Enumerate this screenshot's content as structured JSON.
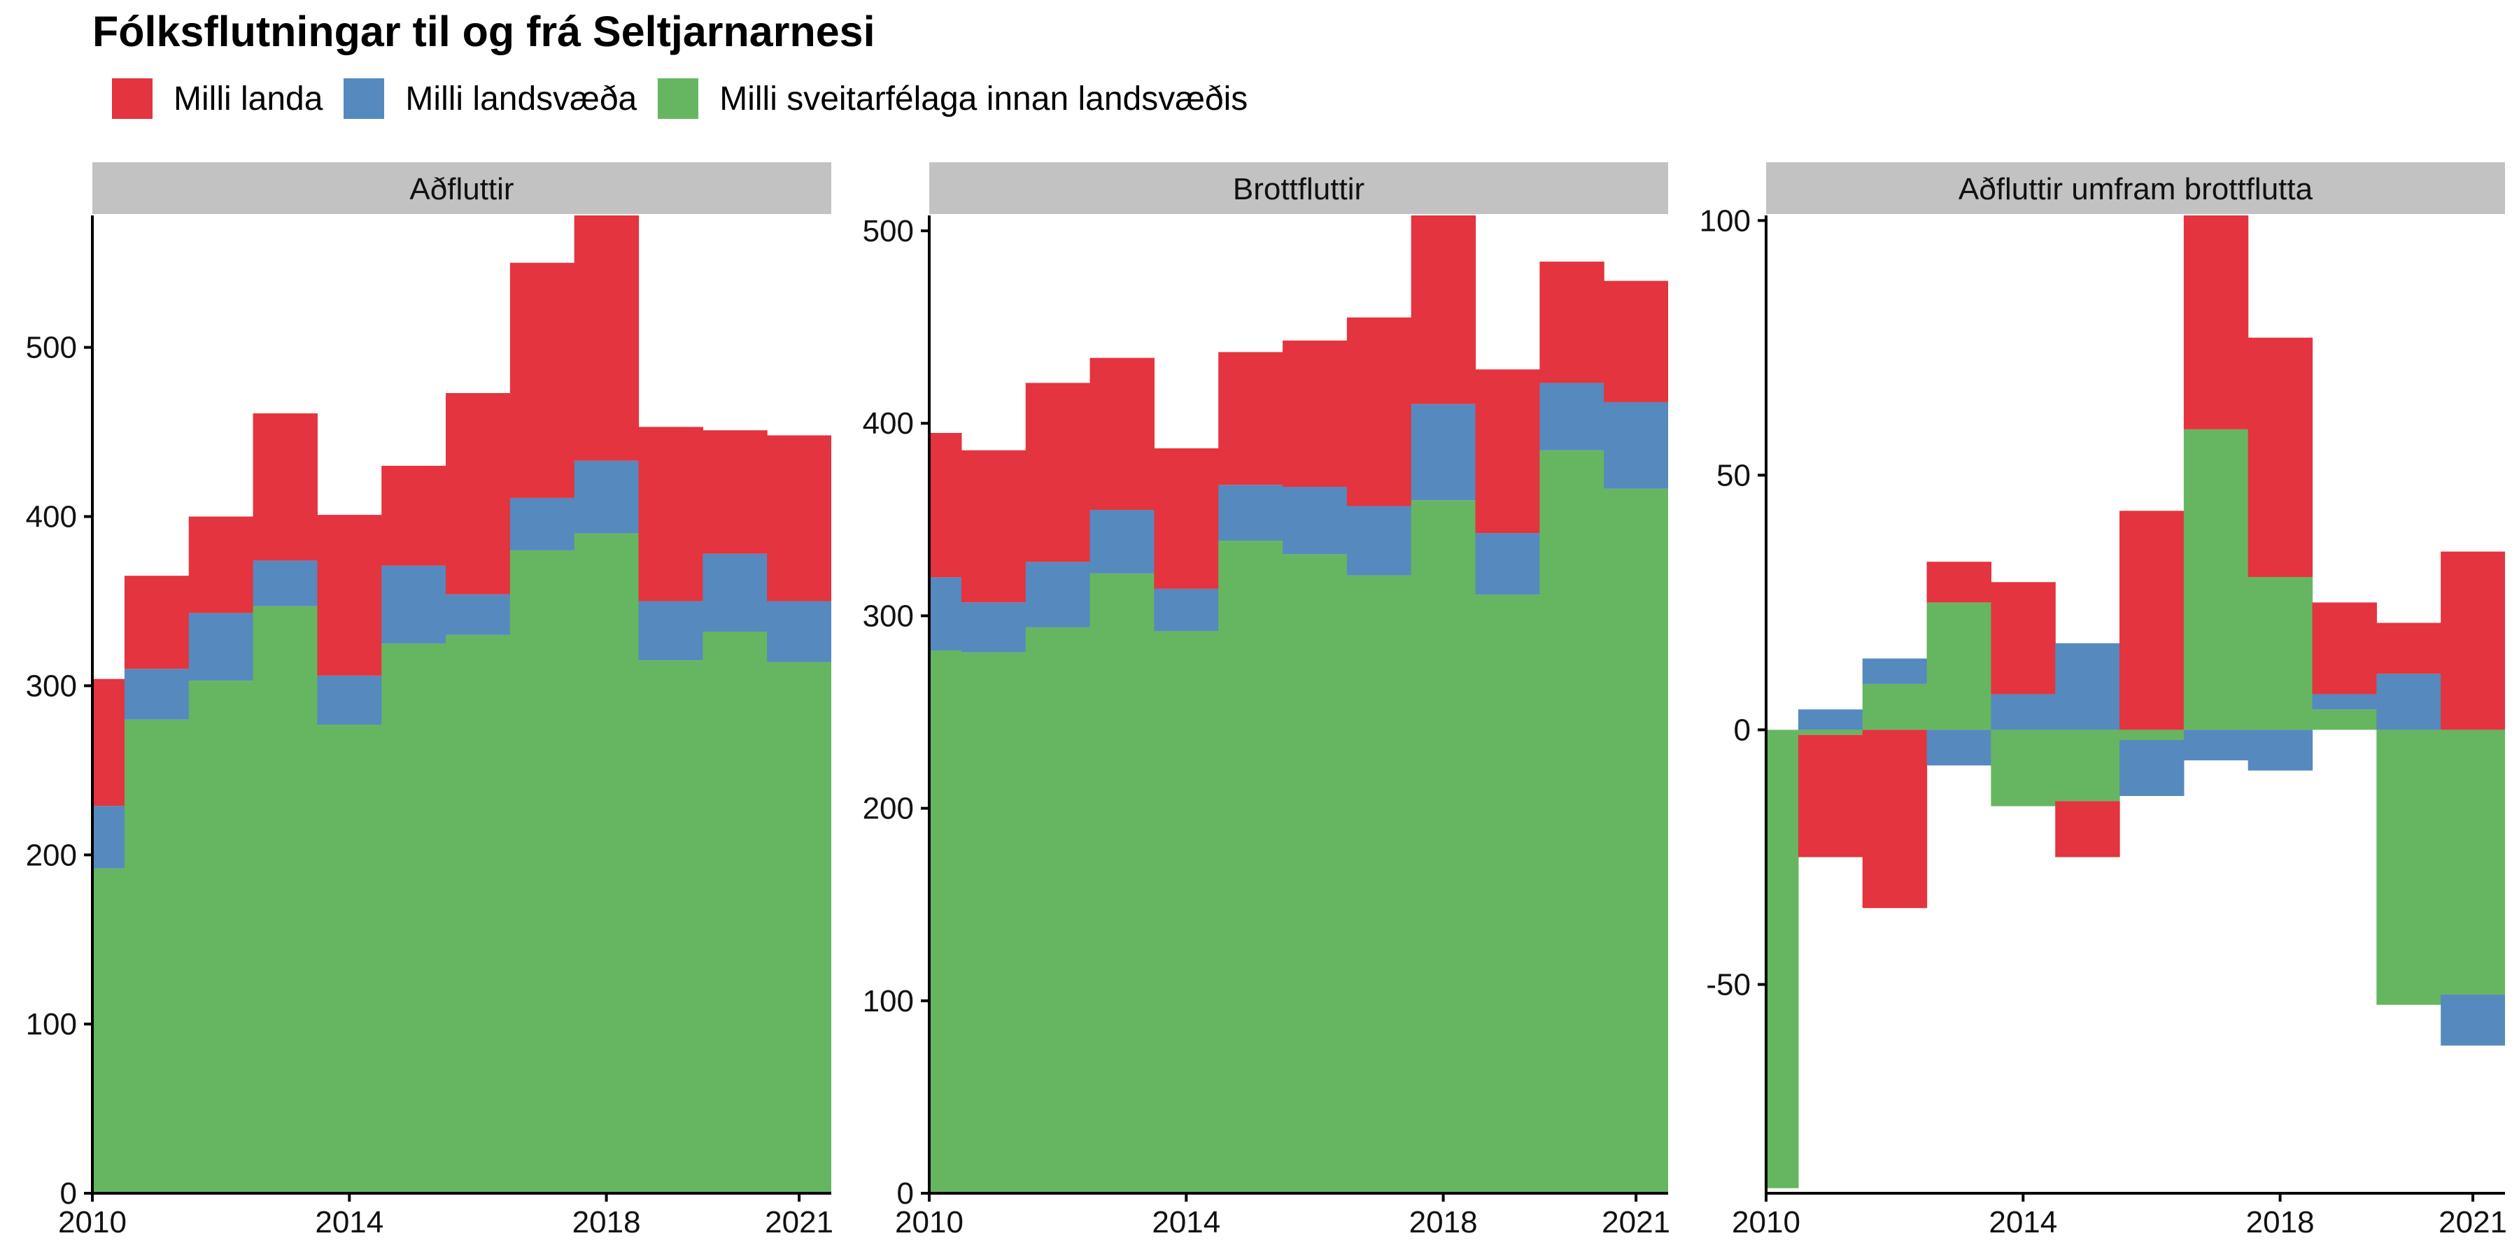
{
  "title": "Fólksflutningar til og frá Seltjarnarnesi",
  "legend": [
    {
      "label": "Milli landa",
      "color": "#e3343f"
    },
    {
      "label": "Milli landsvæða",
      "color": "#5689bd"
    },
    {
      "label": "Milli sveitarfélaga innan landsvæðis",
      "color": "#66b661"
    }
  ],
  "colors": {
    "panel_header": "#c2c2c2",
    "axis": "#000000"
  },
  "chart_data": [
    {
      "type": "bar",
      "stacked": true,
      "title": "Aðfluttir",
      "x": [
        2010,
        2011,
        2012,
        2013,
        2014,
        2015,
        2016,
        2017,
        2018,
        2019,
        2020,
        2021
      ],
      "x_ticks": [
        2010,
        2014,
        2018,
        2021
      ],
      "ylim": [
        0,
        578
      ],
      "y_ticks": [
        0,
        100,
        200,
        300,
        400,
        500
      ],
      "series": [
        {
          "name": "Milli sveitarfélaga innan landsvæðis",
          "values": [
            192,
            280,
            303,
            347,
            277,
            325,
            330,
            380,
            390,
            315,
            332,
            314
          ]
        },
        {
          "name": "Milli landsvæða",
          "values": [
            37,
            30,
            40,
            27,
            29,
            46,
            24,
            31,
            43,
            35,
            46,
            36
          ]
        },
        {
          "name": "Milli landa",
          "values": [
            75,
            55,
            57,
            87,
            95,
            59,
            119,
            139,
            146,
            103,
            73,
            98
          ]
        }
      ]
    },
    {
      "type": "bar",
      "stacked": true,
      "title": "Brottfluttir",
      "x": [
        2010,
        2011,
        2012,
        2013,
        2014,
        2015,
        2016,
        2017,
        2018,
        2019,
        2020,
        2021
      ],
      "x_ticks": [
        2010,
        2014,
        2018,
        2021
      ],
      "ylim": [
        0,
        508
      ],
      "y_ticks": [
        0,
        100,
        200,
        300,
        400,
        500
      ],
      "series": [
        {
          "name": "Milli sveitarfélaga innan landsvæðis",
          "values": [
            282,
            281,
            294,
            322,
            292,
            339,
            332,
            321,
            360,
            311,
            386,
            366
          ]
        },
        {
          "name": "Milli landsvæða",
          "values": [
            38,
            26,
            34,
            33,
            22,
            29,
            35,
            36,
            50,
            32,
            35,
            45
          ]
        },
        {
          "name": "Milli landa",
          "values": [
            75,
            79,
            93,
            79,
            73,
            69,
            76,
            98,
            98,
            85,
            63,
            63
          ]
        }
      ]
    },
    {
      "type": "bar",
      "stacked": true,
      "title": "Aðfluttir umfram brottflutta",
      "x": [
        2010,
        2011,
        2012,
        2013,
        2014,
        2015,
        2016,
        2017,
        2018,
        2019,
        2020,
        2021
      ],
      "x_ticks": [
        2010,
        2014,
        2018,
        2021
      ],
      "ylim": [
        -91,
        101
      ],
      "y_ticks": [
        -50,
        0,
        50,
        100
      ],
      "series": [
        {
          "name": "Milli sveitarfélaga innan landsvæðis",
          "values": [
            -90,
            -1,
            9,
            25,
            -15,
            -14,
            -2,
            59,
            30,
            4,
            -54,
            -52
          ]
        },
        {
          "name": "Milli landsvæða",
          "values": [
            0,
            4,
            5,
            -7,
            7,
            17,
            -11,
            -6,
            -8,
            3,
            11,
            -10
          ]
        },
        {
          "name": "Milli landa",
          "values": [
            0,
            -24,
            -35,
            8,
            22,
            -11,
            43,
            42,
            47,
            18,
            10,
            35
          ]
        }
      ]
    }
  ]
}
